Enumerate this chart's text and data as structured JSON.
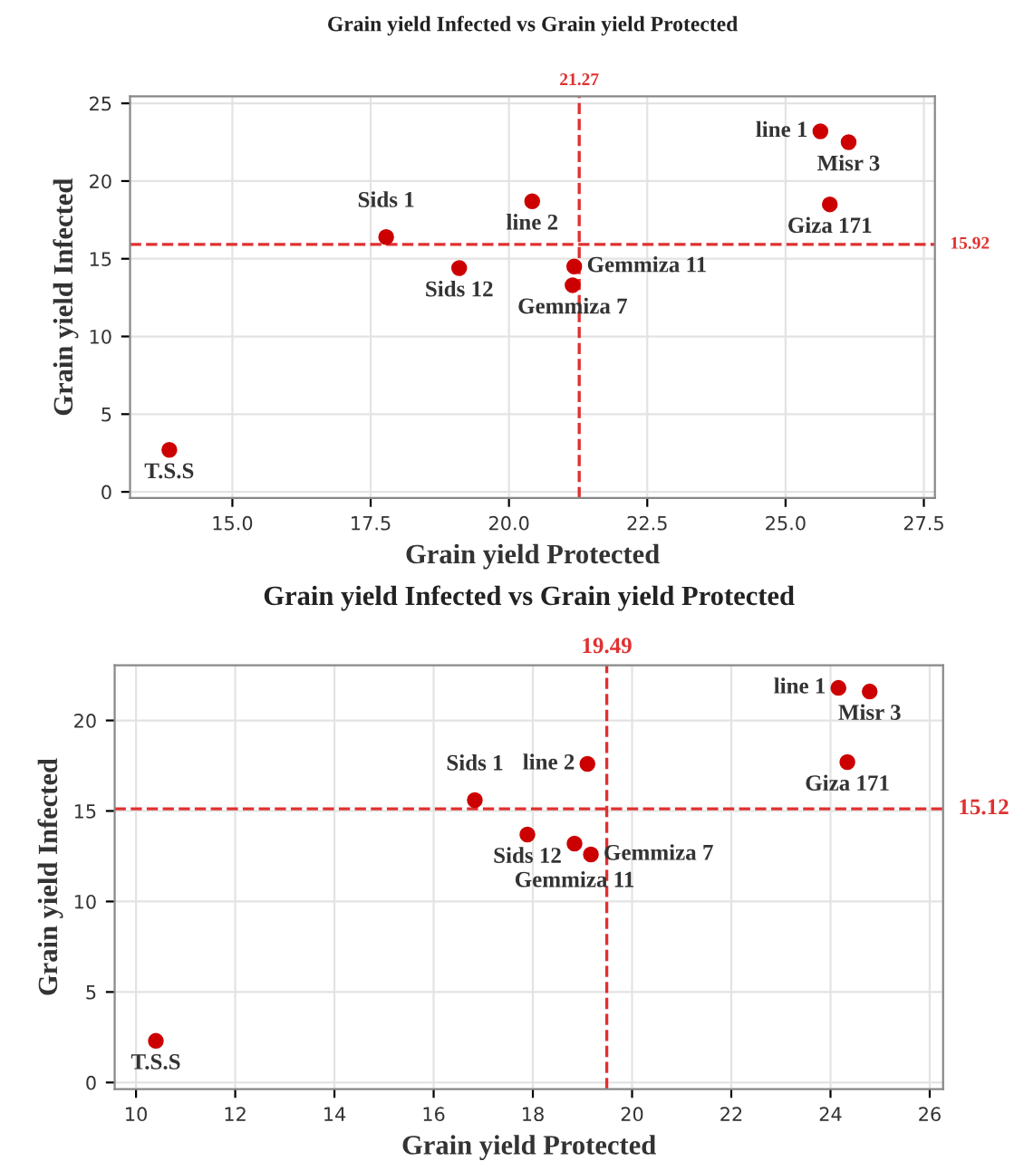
{
  "chart_data": [
    {
      "type": "scatter",
      "title": "Grain yield Infected vs Grain yield Protected",
      "xlabel": "Grain yield Protected",
      "ylabel": "Grain yield Infected",
      "x": [
        13.86,
        17.78,
        19.1,
        20.42,
        21.18,
        21.15,
        25.63,
        26.14,
        25.8
      ],
      "series": [
        {
          "color": "#cc0000",
          "values": [
            2.7,
            16.4,
            14.4,
            18.7,
            14.5,
            13.3,
            23.2,
            22.5,
            18.5
          ]
        }
      ],
      "annotations": [
        {
          "text": "T.S.S",
          "x": 13.86,
          "y": 2.7
        },
        {
          "text": "Sids 1",
          "x": 17.78,
          "y": 16.4
        },
        {
          "text": "Sids 12",
          "x": 19.1,
          "y": 14.4
        },
        {
          "text": "line 2",
          "x": 20.42,
          "y": 18.7
        },
        {
          "text": "Gemmiza 11",
          "x": 21.18,
          "y": 14.5
        },
        {
          "text": "Gemmiza 7",
          "x": 21.15,
          "y": 13.3
        },
        {
          "text": "line 1",
          "x": 25.63,
          "y": 23.2
        },
        {
          "text": "Misr 3",
          "x": 26.14,
          "y": 22.5
        },
        {
          "text": "Giza 171",
          "x": 25.8,
          "y": 18.5
        }
      ],
      "ref_lines": [
        {
          "axis": "x",
          "value": 21.27,
          "label": "21.27",
          "color": "#e03030",
          "line_style": "dashed"
        },
        {
          "axis": "y",
          "value": 15.92,
          "label": "15.92",
          "color": "#e03030",
          "line_style": "dashed"
        }
      ],
      "xlim": [
        13.15,
        27.7
      ],
      "ylim": [
        -0.4,
        25.45
      ],
      "xticks": [
        {
          "value": 15,
          "label": "15.0"
        },
        {
          "value": 17.5,
          "label": "17.5"
        },
        {
          "value": 20,
          "label": "20.0"
        },
        {
          "value": 22.5,
          "label": "22.5"
        },
        {
          "value": 25,
          "label": "25.0"
        },
        {
          "value": 27.5,
          "label": "27.5"
        }
      ],
      "yticks": [
        0,
        5,
        10,
        15,
        20,
        25
      ],
      "grid": true,
      "marker": "circle",
      "legend": false
    },
    {
      "type": "scatter",
      "title": "Grain yield Infected vs Grain yield Protected",
      "xlabel": "Grain yield Protected",
      "ylabel": "Grain yield Infected",
      "x": [
        10.4,
        16.83,
        17.89,
        19.1,
        18.84,
        19.17,
        24.16,
        24.79,
        24.34
      ],
      "series": [
        {
          "color": "#cc0000",
          "values": [
            2.3,
            15.6,
            13.7,
            17.6,
            13.2,
            12.6,
            21.8,
            21.6,
            17.7
          ]
        }
      ],
      "annotations": [
        {
          "text": "T.S.S",
          "x": 10.4,
          "y": 2.3
        },
        {
          "text": "Sids 1",
          "x": 16.83,
          "y": 15.6
        },
        {
          "text": "Sids 12",
          "x": 17.89,
          "y": 13.7
        },
        {
          "text": "line 2",
          "x": 19.1,
          "y": 17.6
        },
        {
          "text": "Gemmiza 11",
          "x": 18.84,
          "y": 13.2
        },
        {
          "text": "Gemmiza 7",
          "x": 19.17,
          "y": 12.6
        },
        {
          "text": "line 1",
          "x": 24.16,
          "y": 21.8
        },
        {
          "text": "Misr 3",
          "x": 24.79,
          "y": 21.6
        },
        {
          "text": "Giza 171",
          "x": 24.34,
          "y": 17.7
        }
      ],
      "ref_lines": [
        {
          "axis": "x",
          "value": 19.49,
          "label": "19.49",
          "color": "#e03030",
          "line_style": "dashed"
        },
        {
          "axis": "y",
          "value": 15.12,
          "label": "15.12",
          "color": "#e03030",
          "line_style": "dashed"
        }
      ],
      "xlim": [
        9.57,
        26.27
      ],
      "ylim": [
        -0.36,
        23.05
      ],
      "xticks": [
        10,
        12,
        14,
        16,
        18,
        20,
        22,
        24,
        26
      ],
      "yticks": [
        0,
        5,
        10,
        15,
        20
      ],
      "grid": true,
      "marker": "circle",
      "legend": false
    }
  ]
}
